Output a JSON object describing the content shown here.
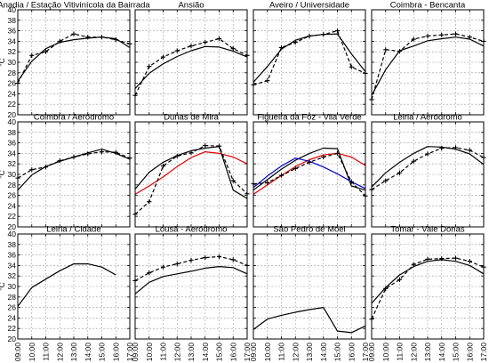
{
  "chart_data": {
    "type": "line",
    "x_ticks": [
      "09:00",
      "10:00",
      "11:00",
      "12:00",
      "13:00",
      "14:00",
      "15:00",
      "16:00",
      "17:00"
    ],
    "ylim": [
      20,
      40
    ],
    "y_ticks": [
      20,
      22,
      24,
      26,
      28,
      30,
      32,
      34,
      36,
      38,
      40
    ],
    "ylabel": "°C",
    "grid": true,
    "colors": {
      "black": "#000000",
      "red": "#e00000",
      "blue": "#0000cc"
    },
    "panels": [
      {
        "title": "Anadia / Estação Vitivinícola da Bairrada",
        "series": [
          {
            "style": "solid",
            "color": "black",
            "values": [
              26.4,
              30.2,
              32.6,
              33.8,
              34.3,
              34.6,
              34.8,
              34.5,
              32.8
            ]
          },
          {
            "style": "dashed-plus",
            "color": "black",
            "values": [
              26.0,
              31.3,
              32.0,
              34.0,
              35.4,
              34.8,
              34.8,
              34.3,
              33.5
            ]
          }
        ]
      },
      {
        "title": "Ansião",
        "series": [
          {
            "style": "solid",
            "color": "black",
            "values": [
              25.0,
              27.9,
              29.7,
              31.1,
              32.2,
              33.0,
              32.9,
              32.1,
              31.0
            ]
          },
          {
            "style": "dashed-plus",
            "color": "black",
            "values": [
              23.7,
              29.2,
              31.0,
              32.2,
              33.1,
              33.8,
              34.5,
              32.6,
              31.3
            ]
          }
        ]
      },
      {
        "title": "Aveiro / Universidade",
        "series": [
          {
            "style": "solid",
            "color": "black",
            "values": [
              26.2,
              29.2,
              32.5,
              34.2,
              35.0,
              35.3,
              35.4,
              31.6,
              28.2
            ]
          },
          {
            "style": "dashed-plus",
            "color": "black",
            "values": [
              25.7,
              26.5,
              32.8,
              33.8,
              35.0,
              35.3,
              36.0,
              29.1,
              27.9
            ]
          }
        ]
      },
      {
        "title": "Coimbra - Bencanta",
        "series": [
          {
            "style": "solid",
            "color": "black",
            "values": [
              23.7,
              28.6,
              32.2,
              33.1,
              34.1,
              34.5,
              34.8,
              34.4,
              33.1
            ]
          },
          {
            "style": "dashed-plus",
            "color": "black",
            "values": [
              22.9,
              32.4,
              32.1,
              34.4,
              35.0,
              35.2,
              35.4,
              34.8,
              34.0
            ]
          }
        ]
      },
      {
        "title": "Coimbra / Aeródromo",
        "series": [
          {
            "style": "solid",
            "color": "black",
            "values": [
              27.0,
              29.9,
              31.5,
              32.5,
              33.3,
              34.1,
              34.8,
              34.0,
              32.9
            ]
          },
          {
            "style": "dashed-plus",
            "color": "black",
            "values": [
              29.3,
              30.9,
              31.4,
              32.6,
              33.3,
              33.9,
              34.3,
              34.2,
              33.1
            ]
          }
        ]
      },
      {
        "title": "Dunas de Mira",
        "series": [
          {
            "style": "solid",
            "color": "black",
            "values": [
              27.2,
              30.4,
              32.3,
              33.6,
              34.5,
              35.0,
              35.3,
              27.0,
              25.4
            ]
          },
          {
            "style": "solid",
            "color": "red",
            "values": [
              26.2,
              27.8,
              29.5,
              31.5,
              33.2,
              34.3,
              34.0,
              33.3,
              32.0
            ]
          },
          {
            "style": "dashed-plus",
            "color": "black",
            "values": [
              22.4,
              24.8,
              31.6,
              33.5,
              34.1,
              35.5,
              35.4,
              28.8,
              26.3
            ]
          }
        ]
      },
      {
        "title": "Figueira da Foz - Vila Verde",
        "series": [
          {
            "style": "solid",
            "color": "black",
            "values": [
              27.0,
              29.0,
              31.0,
              32.7,
              34.0,
              35.0,
              34.9,
              27.8,
              27.0
            ]
          },
          {
            "style": "solid",
            "color": "red",
            "values": [
              26.2,
              28.0,
              29.8,
              31.5,
              32.8,
              33.7,
              34.0,
              33.3,
              31.7
            ]
          },
          {
            "style": "solid",
            "color": "blue",
            "values": [
              27.5,
              29.7,
              31.6,
              33.1,
              32.5,
              31.4,
              30.1,
              28.6,
              27.3
            ]
          },
          {
            "style": "dashed-plus",
            "color": "black",
            "values": [
              28.2,
              28.4,
              29.8,
              31.1,
              32.3,
              33.3,
              34.0,
              28.6,
              25.9
            ]
          }
        ]
      },
      {
        "title": "Leiria / Aeródromo",
        "series": [
          {
            "style": "solid",
            "color": "black",
            "values": [
              27.6,
              30.3,
              32.3,
              34.0,
              35.3,
              35.2,
              34.8,
              33.9,
              31.9
            ]
          },
          {
            "style": "dashed-plus",
            "color": "black",
            "values": [
              27.1,
              28.8,
              30.3,
              32.5,
              33.9,
              35.0,
              35.1,
              34.6,
              33.2
            ]
          }
        ]
      },
      {
        "title": "Leiria / Cidade",
        "series": [
          {
            "style": "solid",
            "color": "black",
            "values": [
              26.2,
              29.8,
              31.4,
              33.0,
              34.3,
              34.3,
              33.7,
              32.2
            ]
          }
        ]
      },
      {
        "title": "Lousã - Aeródromo",
        "series": [
          {
            "style": "solid",
            "color": "black",
            "values": [
              28.6,
              30.8,
              31.9,
              32.4,
              32.9,
              33.5,
              33.8,
              33.6,
              32.4
            ]
          },
          {
            "style": "dashed-plus",
            "color": "black",
            "values": [
              31.1,
              32.6,
              33.7,
              34.3,
              35.0,
              35.5,
              35.7,
              35.1,
              34.0
            ]
          }
        ]
      },
      {
        "title": "São Pedro de Moel",
        "series": [
          {
            "style": "solid",
            "color": "black",
            "values": [
              21.8,
              23.8,
              24.5,
              25.1,
              25.6,
              26.0,
              21.5,
              21.2,
              22.5
            ]
          }
        ]
      },
      {
        "title": "Tomar - Vale Donas",
        "series": [
          {
            "style": "solid",
            "color": "black",
            "values": [
              26.8,
              29.8,
              32.2,
              33.8,
              34.8,
              35.1,
              34.8,
              34.0,
              32.4
            ]
          },
          {
            "style": "dashed-plus",
            "color": "black",
            "values": [
              23.8,
              29.6,
              31.3,
              34.2,
              35.2,
              35.3,
              35.4,
              34.8,
              33.7
            ]
          }
        ]
      }
    ]
  }
}
